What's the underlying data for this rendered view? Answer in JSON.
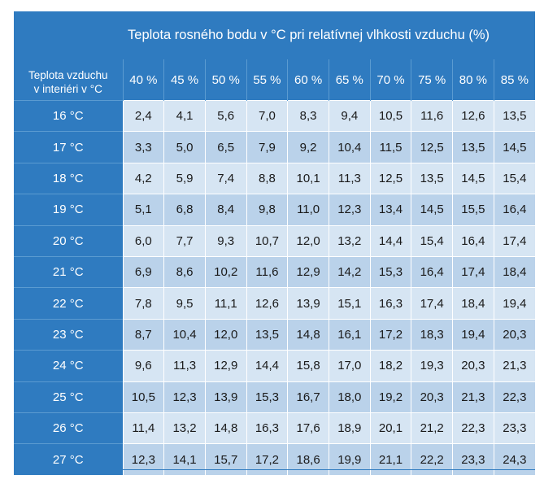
{
  "table": {
    "title": "Teplota rosného bodu v °C  pri relatívnej vlhkosti vzduchu (%)",
    "corner_line1": "Teplota vzduchu",
    "corner_line2": "v interiéri v °C",
    "humidity_headers": [
      "40 %",
      "45 %",
      "50 %",
      "55 %",
      "60 %",
      "65 %",
      "70 %",
      "75 %",
      "80 %",
      "85 %"
    ],
    "rows": [
      {
        "label": "16 °C",
        "values": [
          "2,4",
          "4,1",
          "5,6",
          "7,0",
          "8,3",
          "9,4",
          "10,5",
          "11,6",
          "12,6",
          "13,5"
        ]
      },
      {
        "label": "17 °C",
        "values": [
          "3,3",
          "5,0",
          "6,5",
          "7,9",
          "9,2",
          "10,4",
          "11,5",
          "12,5",
          "13,5",
          "14,5"
        ]
      },
      {
        "label": "18 °C",
        "values": [
          "4,2",
          "5,9",
          "7,4",
          "8,8",
          "10,1",
          "11,3",
          "12,5",
          "13,5",
          "14,5",
          "15,4"
        ]
      },
      {
        "label": "19 °C",
        "values": [
          "5,1",
          "6,8",
          "8,4",
          "9,8",
          "11,0",
          "12,3",
          "13,4",
          "14,5",
          "15,5",
          "16,4"
        ]
      },
      {
        "label": "20 °C",
        "values": [
          "6,0",
          "7,7",
          "9,3",
          "10,7",
          "12,0",
          "13,2",
          "14,4",
          "15,4",
          "16,4",
          "17,4"
        ]
      },
      {
        "label": "21 °C",
        "values": [
          "6,9",
          "8,6",
          "10,2",
          "11,6",
          "12,9",
          "14,2",
          "15,3",
          "16,4",
          "17,4",
          "18,4"
        ]
      },
      {
        "label": "22 °C",
        "values": [
          "7,8",
          "9,5",
          "11,1",
          "12,6",
          "13,9",
          "15,1",
          "16,3",
          "17,4",
          "18,4",
          "19,4"
        ]
      },
      {
        "label": "23 °C",
        "values": [
          "8,7",
          "10,4",
          "12,0",
          "13,5",
          "14,8",
          "16,1",
          "17,2",
          "18,3",
          "19,4",
          "20,3"
        ]
      },
      {
        "label": "24 °C",
        "values": [
          "9,6",
          "11,3",
          "12,9",
          "14,4",
          "15,8",
          "17,0",
          "18,2",
          "19,3",
          "20,3",
          "21,3"
        ]
      },
      {
        "label": "25 °C",
        "values": [
          "10,5",
          "12,3",
          "13,9",
          "15,3",
          "16,7",
          "18,0",
          "19,2",
          "20,3",
          "21,3",
          "22,3"
        ]
      },
      {
        "label": "26 °C",
        "values": [
          "11,4",
          "13,2",
          "14,8",
          "16,3",
          "17,6",
          "18,9",
          "20,1",
          "21,2",
          "22,3",
          "23,3"
        ]
      },
      {
        "label": "27 °C",
        "values": [
          "12,3",
          "14,1",
          "15,7",
          "17,2",
          "18,6",
          "19,9",
          "21,1",
          "22,2",
          "23,3",
          "24,3"
        ]
      }
    ]
  },
  "colors": {
    "header_blue": "#2f7bc0",
    "row_light": "#d6e5f3",
    "row_dark": "#bad2ea"
  }
}
